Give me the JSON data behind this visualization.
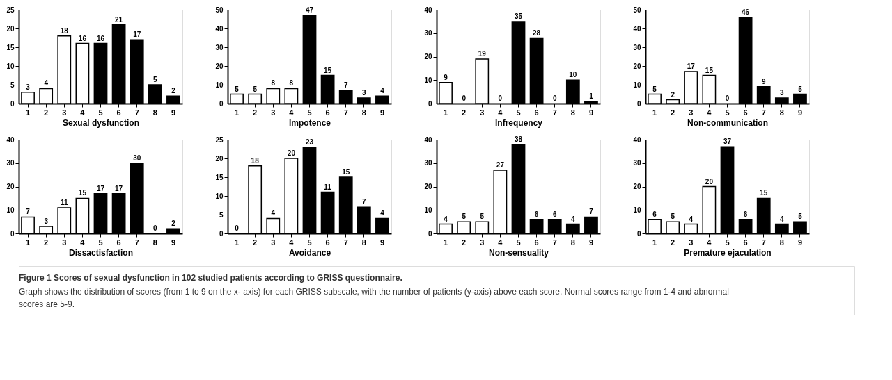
{
  "chart_data": [
    {
      "type": "bar",
      "xlabel": "Sexual dysfunction",
      "categories": [
        "1",
        "2",
        "3",
        "4",
        "5",
        "6",
        "7",
        "8",
        "9"
      ],
      "values": [
        3,
        4,
        18,
        16,
        16,
        21,
        17,
        5,
        2
      ],
      "colors": [
        "#ffffff",
        "#ffffff",
        "#ffffff",
        "#ffffff",
        "#000000",
        "#000000",
        "#000000",
        "#000000",
        "#000000"
      ],
      "ylim": [
        0,
        25
      ],
      "yticks": [
        0,
        5,
        10,
        15,
        20,
        25
      ],
      "data_labels": true
    },
    {
      "type": "bar",
      "xlabel": "Impotence",
      "categories": [
        "1",
        "2",
        "3",
        "4",
        "5",
        "6",
        "7",
        "8",
        "9"
      ],
      "values": [
        5,
        5,
        8,
        8,
        47,
        15,
        7,
        3,
        4
      ],
      "colors": [
        "#ffffff",
        "#ffffff",
        "#ffffff",
        "#ffffff",
        "#000000",
        "#000000",
        "#000000",
        "#000000",
        "#000000"
      ],
      "ylim": [
        0,
        50
      ],
      "yticks": [
        0,
        10,
        20,
        30,
        40,
        50
      ],
      "data_labels": true
    },
    {
      "type": "bar",
      "xlabel": "Infrequency",
      "categories": [
        "1",
        "2",
        "3",
        "4",
        "5",
        "6",
        "7",
        "8",
        "9"
      ],
      "values": [
        9,
        0,
        19,
        0,
        35,
        28,
        0,
        10,
        1
      ],
      "colors": [
        "#ffffff",
        "#ffffff",
        "#ffffff",
        "#ffffff",
        "#000000",
        "#000000",
        "#000000",
        "#000000",
        "#000000"
      ],
      "ylim": [
        0,
        40
      ],
      "yticks": [
        0,
        10,
        20,
        30,
        40
      ],
      "data_labels": true
    },
    {
      "type": "bar",
      "xlabel": "Non-communication",
      "categories": [
        "1",
        "2",
        "3",
        "4",
        "5",
        "6",
        "7",
        "8",
        "9"
      ],
      "values": [
        5,
        2,
        17,
        15,
        0,
        46,
        9,
        3,
        5
      ],
      "colors": [
        "#ffffff",
        "#ffffff",
        "#ffffff",
        "#ffffff",
        "#000000",
        "#000000",
        "#000000",
        "#000000",
        "#000000"
      ],
      "ylim": [
        0,
        50
      ],
      "yticks": [
        0,
        10,
        20,
        30,
        40,
        50
      ],
      "data_labels": true
    },
    {
      "type": "bar",
      "xlabel": "Dissactisfaction",
      "categories": [
        "1",
        "2",
        "3",
        "4",
        "5",
        "6",
        "7",
        "8",
        "9"
      ],
      "values": [
        7,
        3,
        11,
        15,
        17,
        17,
        30,
        0,
        2
      ],
      "colors": [
        "#ffffff",
        "#ffffff",
        "#ffffff",
        "#ffffff",
        "#000000",
        "#000000",
        "#000000",
        "#000000",
        "#000000"
      ],
      "ylim": [
        0,
        40
      ],
      "yticks": [
        0,
        10,
        20,
        30,
        40
      ],
      "data_labels": true
    },
    {
      "type": "bar",
      "xlabel": "Avoidance",
      "categories": [
        "1",
        "2",
        "3",
        "4",
        "5",
        "6",
        "7",
        "8",
        "9"
      ],
      "values": [
        0,
        18,
        4,
        20,
        23,
        11,
        15,
        7,
        4
      ],
      "colors": [
        "#ffffff",
        "#ffffff",
        "#ffffff",
        "#ffffff",
        "#000000",
        "#000000",
        "#000000",
        "#000000",
        "#000000"
      ],
      "ylim": [
        0,
        25
      ],
      "yticks": [
        0,
        5,
        10,
        15,
        20,
        25
      ],
      "data_labels": true
    },
    {
      "type": "bar",
      "xlabel": "Non-sensuality",
      "categories": [
        "1",
        "2",
        "3",
        "4",
        "5",
        "6",
        "7",
        "8",
        "9"
      ],
      "values": [
        4,
        5,
        5,
        27,
        38,
        6,
        6,
        4,
        7
      ],
      "colors": [
        "#ffffff",
        "#ffffff",
        "#ffffff",
        "#ffffff",
        "#000000",
        "#000000",
        "#000000",
        "#000000",
        "#000000"
      ],
      "ylim": [
        0,
        40
      ],
      "yticks": [
        0,
        10,
        20,
        30,
        40
      ],
      "data_labels": true
    },
    {
      "type": "bar",
      "xlabel": "Premature ejaculation",
      "categories": [
        "1",
        "2",
        "3",
        "4",
        "5",
        "6",
        "7",
        "8",
        "9"
      ],
      "values": [
        6,
        5,
        4,
        20,
        37,
        6,
        15,
        4,
        5
      ],
      "colors": [
        "#ffffff",
        "#ffffff",
        "#ffffff",
        "#ffffff",
        "#000000",
        "#000000",
        "#000000",
        "#000000",
        "#000000"
      ],
      "ylim": [
        0,
        40
      ],
      "yticks": [
        0,
        10,
        20,
        30,
        40
      ],
      "data_labels": true,
      "annotations": [
        "Figure 1 Scores of sexual dysfunction in 102 studied patients according to GRISS questionnaire.",
        "Graph shows the distribution of scores (from 1 to 9 on the x- axis) for each GRISS subscale, with the number of patients (y-axis) above each score. Normal scores range from 1-4 and abnormal scores are 5-9."
      ]
    }
  ]
}
